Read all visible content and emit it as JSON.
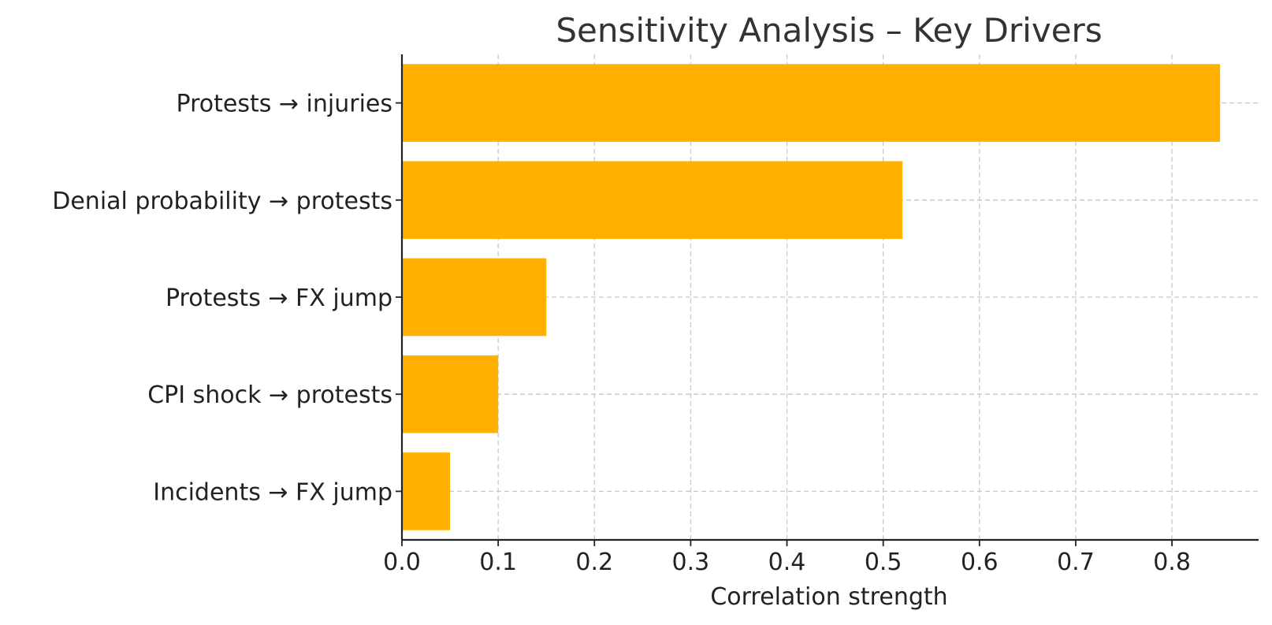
{
  "chart_data": {
    "type": "bar",
    "orientation": "horizontal",
    "title": "Sensitivity Analysis – Key Drivers",
    "xlabel": "Correlation strength",
    "ylabel": "",
    "categories": [
      "Protests → injuries",
      "Denial probability → protests",
      "Protests → FX jump",
      "CPI shock → protests",
      "Incidents → FX jump"
    ],
    "values": [
      0.85,
      0.52,
      0.15,
      0.1,
      0.05
    ],
    "xlim": [
      0,
      0.89
    ],
    "xticks": [
      0.0,
      0.1,
      0.2,
      0.3,
      0.4,
      0.5,
      0.6,
      0.7,
      0.8
    ],
    "xtick_labels": [
      "0.0",
      "0.1",
      "0.2",
      "0.3",
      "0.4",
      "0.5",
      "0.6",
      "0.7",
      "0.8"
    ],
    "grid": true,
    "bar_color": "#FFB000"
  }
}
